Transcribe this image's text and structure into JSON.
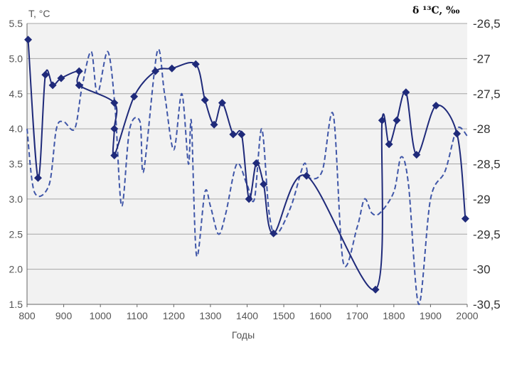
{
  "chart_data": {
    "type": "line",
    "y_left_label": "Т, °С",
    "y_right_label": "δ ¹³C, ‰",
    "xlabel": "Годы",
    "xlim": [
      800,
      2000
    ],
    "ylim_left": [
      1.5,
      5.5
    ],
    "ylim_right": [
      -30.5,
      -26.5
    ],
    "x_ticks": [
      "800",
      "900",
      "1000",
      "1100",
      "1200",
      "1300",
      "1400",
      "1500",
      "1600",
      "1700",
      "1800",
      "1900",
      "2000"
    ],
    "y_left_ticks": [
      "1.5",
      "2.0",
      "2.5",
      "3.0",
      "3.5",
      "4.0",
      "4.5",
      "5.0",
      "5.5"
    ],
    "y_right_ticks": [
      "-26,5",
      "-27",
      "-27,5",
      "-28",
      "-28,5",
      "-29",
      "-29,5",
      "-30",
      "-30,5"
    ],
    "grid": "horizontal",
    "colors": {
      "solid_series": "#1f2a7a",
      "dashed_series": "#3f56a8",
      "grid": "#a6a6a6",
      "plot_bg": "#f2f2f2"
    },
    "series": [
      {
        "style": "solid-line-diamond-markers",
        "axis": "left",
        "points": [
          [
            803,
            5.27
          ],
          [
            830,
            3.3
          ],
          [
            850,
            4.77
          ],
          [
            870,
            4.62
          ],
          [
            893,
            4.72
          ],
          [
            942,
            4.82
          ],
          [
            942,
            4.62
          ],
          [
            1038,
            4.37
          ],
          [
            1038,
            4.0
          ],
          [
            1038,
            3.62
          ],
          [
            1092,
            4.46
          ],
          [
            1150,
            4.82
          ],
          [
            1195,
            4.86
          ],
          [
            1260,
            4.92
          ],
          [
            1285,
            4.41
          ],
          [
            1310,
            4.06
          ],
          [
            1332,
            4.37
          ],
          [
            1362,
            3.92
          ],
          [
            1385,
            3.92
          ],
          [
            1405,
            3.0
          ],
          [
            1425,
            3.51
          ],
          [
            1445,
            3.21
          ],
          [
            1472,
            2.51
          ],
          [
            1562,
            3.33
          ],
          [
            1750,
            1.71
          ],
          [
            1768,
            4.12
          ],
          [
            1787,
            3.78
          ],
          [
            1808,
            4.12
          ],
          [
            1833,
            4.52
          ],
          [
            1862,
            3.63
          ],
          [
            1915,
            4.33
          ],
          [
            1972,
            3.93
          ],
          [
            1995,
            2.72
          ]
        ]
      },
      {
        "style": "dashed-line",
        "axis": "right",
        "points": [
          [
            800,
            -28.0
          ],
          [
            820,
            -28.9
          ],
          [
            860,
            -28.8
          ],
          [
            880,
            -28.0
          ],
          [
            900,
            -27.9
          ],
          [
            930,
            -28.0
          ],
          [
            950,
            -27.4
          ],
          [
            975,
            -26.9
          ],
          [
            992,
            -27.5
          ],
          [
            1020,
            -26.9
          ],
          [
            1040,
            -27.7
          ],
          [
            1058,
            -29.1
          ],
          [
            1080,
            -28.0
          ],
          [
            1108,
            -27.9
          ],
          [
            1118,
            -28.6
          ],
          [
            1155,
            -26.9
          ],
          [
            1175,
            -27.5
          ],
          [
            1200,
            -28.3
          ],
          [
            1222,
            -27.5
          ],
          [
            1240,
            -28.5
          ],
          [
            1248,
            -27.9
          ],
          [
            1262,
            -29.8
          ],
          [
            1285,
            -28.9
          ],
          [
            1300,
            -29.1
          ],
          [
            1322,
            -29.5
          ],
          [
            1342,
            -29.2
          ],
          [
            1372,
            -28.5
          ],
          [
            1400,
            -28.8
          ],
          [
            1420,
            -29.0
          ],
          [
            1440,
            -28.0
          ],
          [
            1460,
            -29.2
          ],
          [
            1480,
            -29.5
          ],
          [
            1520,
            -29.1
          ],
          [
            1555,
            -28.5
          ],
          [
            1570,
            -28.7
          ],
          [
            1605,
            -28.6
          ],
          [
            1635,
            -27.8
          ],
          [
            1662,
            -29.9
          ],
          [
            1700,
            -29.4
          ],
          [
            1720,
            -29.0
          ],
          [
            1740,
            -29.2
          ],
          [
            1762,
            -29.2
          ],
          [
            1800,
            -28.9
          ],
          [
            1820,
            -28.4
          ],
          [
            1840,
            -28.8
          ],
          [
            1868,
            -30.5
          ],
          [
            1900,
            -29.0
          ],
          [
            1940,
            -28.6
          ],
          [
            1972,
            -28.0
          ],
          [
            2000,
            -28.1
          ]
        ]
      }
    ]
  }
}
